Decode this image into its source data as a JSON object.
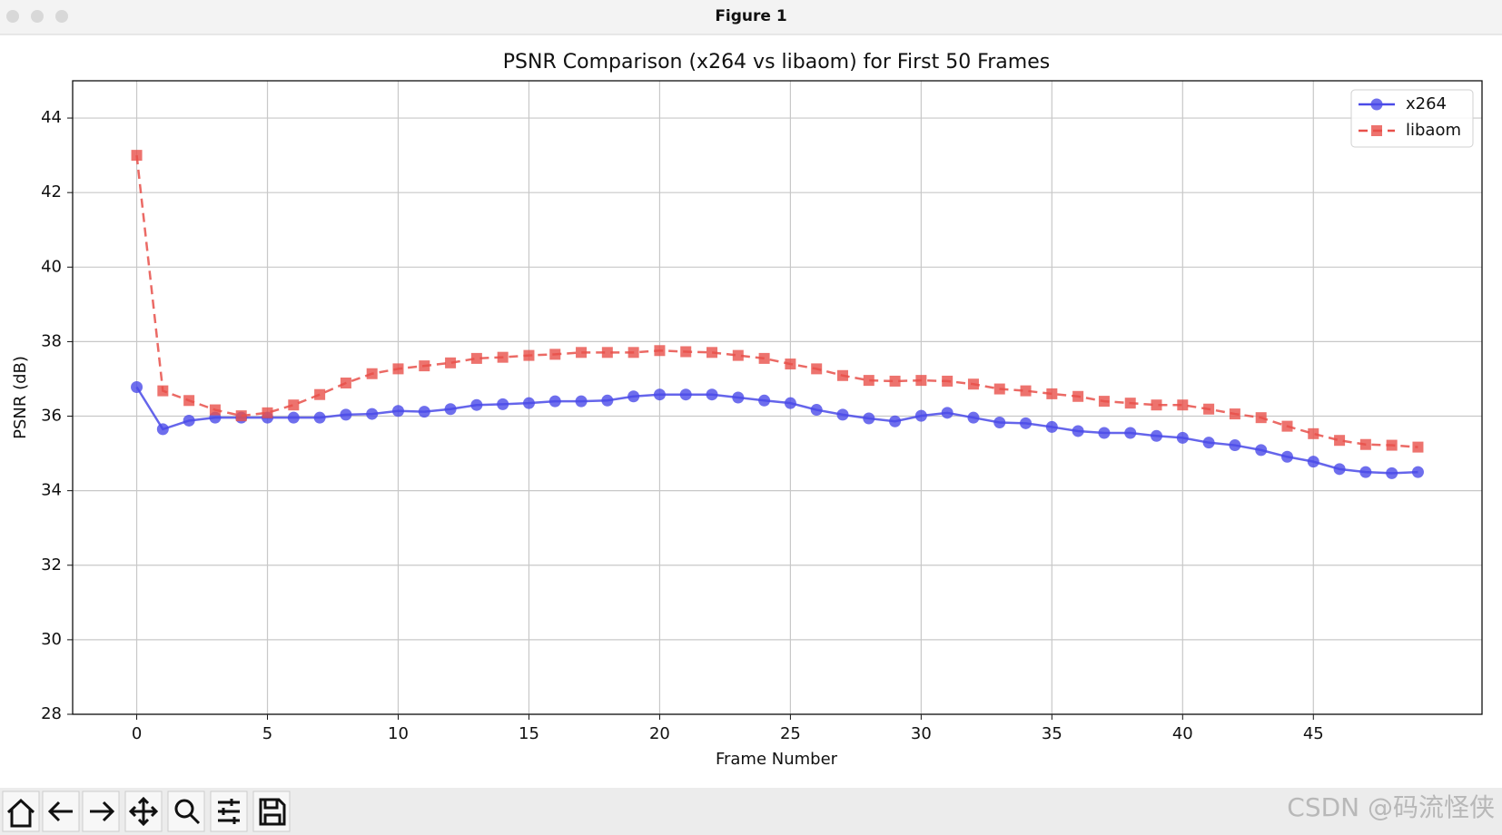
{
  "window": {
    "title": "Figure 1"
  },
  "chart_data": {
    "type": "line",
    "title": "PSNR Comparison (x264 vs libaom) for First 50 Frames",
    "xlabel": "Frame Number",
    "ylabel": "PSNR (dB)",
    "x": [
      0,
      1,
      2,
      3,
      4,
      5,
      6,
      7,
      8,
      9,
      10,
      11,
      12,
      13,
      14,
      15,
      16,
      17,
      18,
      19,
      20,
      21,
      22,
      23,
      24,
      25,
      26,
      27,
      28,
      29,
      30,
      31,
      32,
      33,
      34,
      35,
      36,
      37,
      38,
      39,
      40,
      41,
      42,
      43,
      44,
      45,
      46,
      47,
      48,
      49
    ],
    "series": [
      {
        "name": "x264",
        "color": "#4a4ae8",
        "marker": "circle",
        "linestyle": "solid",
        "values": [
          36.78,
          35.65,
          35.88,
          35.96,
          35.96,
          35.96,
          35.96,
          35.96,
          36.04,
          36.06,
          36.14,
          36.12,
          36.19,
          36.3,
          36.32,
          36.35,
          36.4,
          36.4,
          36.42,
          36.53,
          36.58,
          36.58,
          36.58,
          36.5,
          36.42,
          36.35,
          36.17,
          36.04,
          35.94,
          35.86,
          36.01,
          36.09,
          35.96,
          35.83,
          35.81,
          35.71,
          35.6,
          35.55,
          35.55,
          35.47,
          35.42,
          35.29,
          35.22,
          35.09,
          34.91,
          34.78,
          34.58,
          34.5,
          34.47,
          34.5
        ]
      },
      {
        "name": "libaom",
        "color": "#e8504a",
        "marker": "square",
        "linestyle": "dashed",
        "values": [
          43.0,
          36.68,
          36.42,
          36.17,
          36.01,
          36.09,
          36.3,
          36.58,
          36.89,
          37.14,
          37.27,
          37.35,
          37.43,
          37.55,
          37.58,
          37.63,
          37.66,
          37.71,
          37.71,
          37.71,
          37.76,
          37.73,
          37.71,
          37.63,
          37.55,
          37.4,
          37.27,
          37.09,
          36.96,
          36.94,
          36.96,
          36.94,
          36.86,
          36.73,
          36.68,
          36.6,
          36.53,
          36.4,
          36.35,
          36.3,
          36.3,
          36.19,
          36.06,
          35.96,
          35.73,
          35.53,
          35.35,
          35.24,
          35.22,
          35.17
        ]
      }
    ],
    "xlim": [
      -2.45,
      51.45
    ],
    "ylim": [
      28,
      45
    ],
    "xticks": [
      0,
      5,
      10,
      15,
      20,
      25,
      30,
      35,
      40,
      45
    ],
    "yticks": [
      28,
      30,
      32,
      34,
      36,
      38,
      40,
      42,
      44
    ],
    "grid": true,
    "legend": "upper right"
  },
  "watermark": "CSDN @码流怪侠"
}
